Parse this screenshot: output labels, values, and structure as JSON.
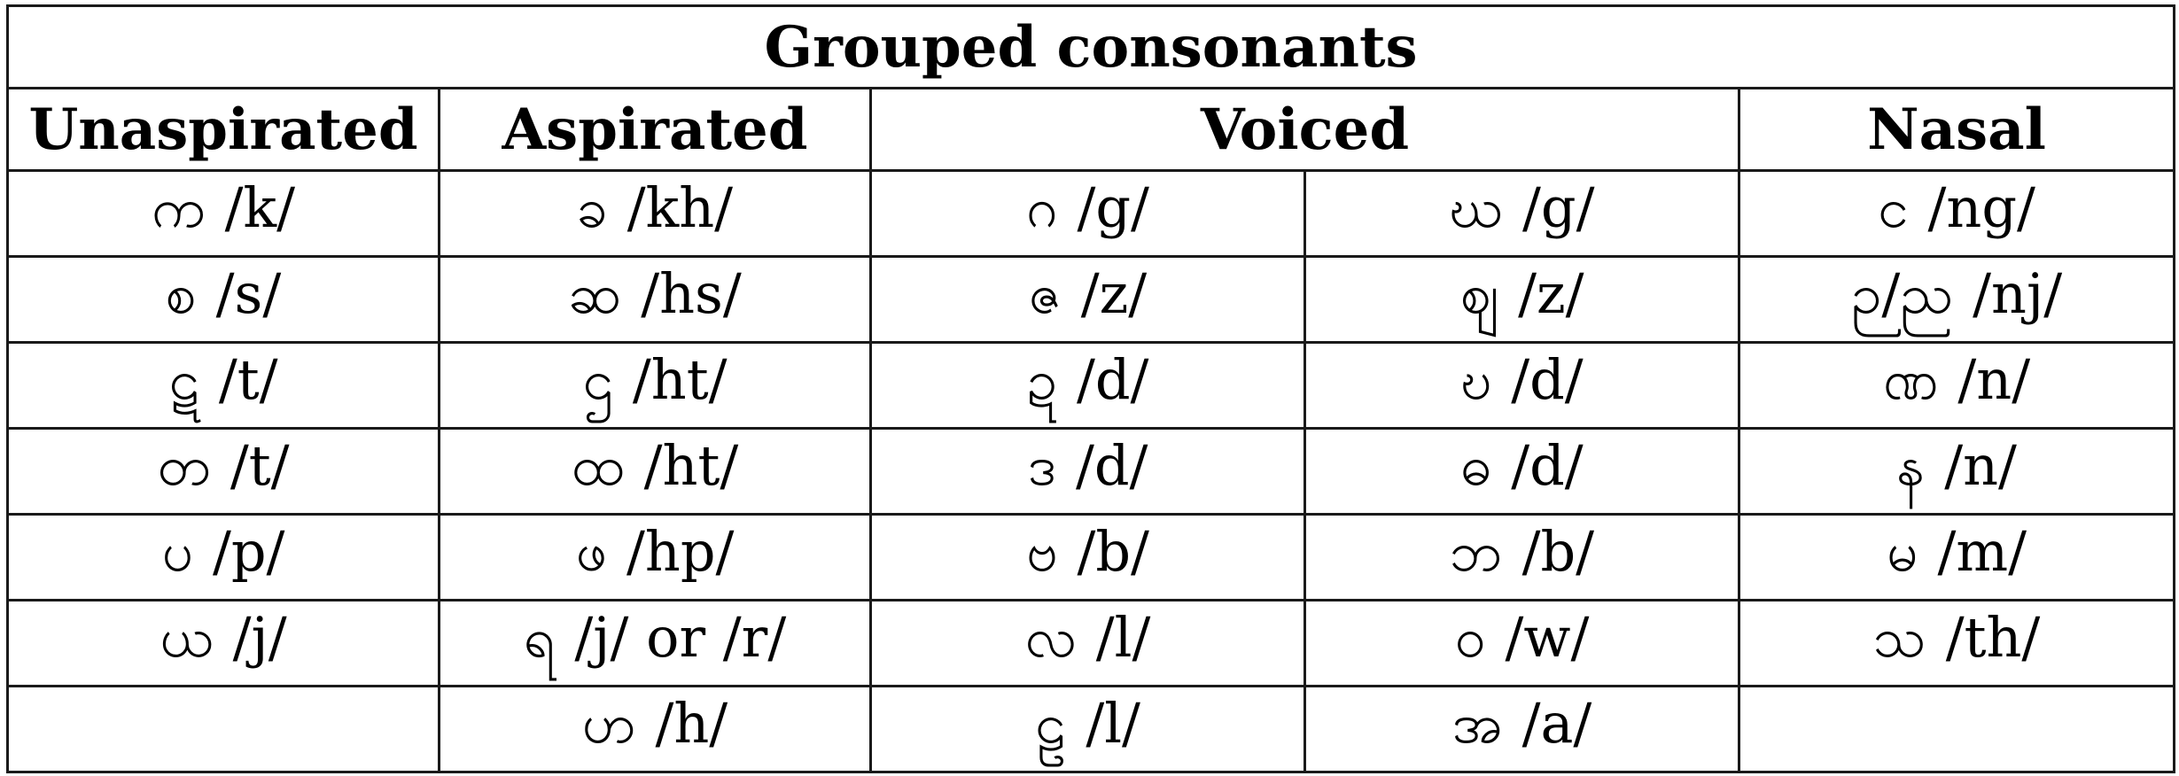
{
  "title": "Grouped consonants",
  "headers": [
    "Unaspirated",
    "Aspirated",
    "Voiced",
    "Nasal"
  ],
  "rows": [
    [
      {
        "g": "က",
        "p": "/k/"
      },
      {
        "g": "ခ",
        "p": "/kh/"
      },
      {
        "g": "ဂ",
        "p": "/g/"
      },
      {
        "g": "ဃ",
        "p": "/g/"
      },
      {
        "g": "င",
        "p": "/ng/"
      }
    ],
    [
      {
        "g": "စ",
        "p": "/s/"
      },
      {
        "g": "ဆ",
        "p": "/hs/"
      },
      {
        "g": "ဇ",
        "p": "/z/"
      },
      {
        "g": "ဈ",
        "p": "/z/"
      },
      {
        "g": "ဉ/ည",
        "p": "/nj/"
      }
    ],
    [
      {
        "g": "ဋ",
        "p": "/t/"
      },
      {
        "g": "ဌ",
        "p": "/ht/"
      },
      {
        "g": "ဍ",
        "p": "/d/"
      },
      {
        "g": "ဎ",
        "p": "/d/"
      },
      {
        "g": "ဏ",
        "p": "/n/"
      }
    ],
    [
      {
        "g": "တ",
        "p": "/t/"
      },
      {
        "g": "ထ",
        "p": "/ht/"
      },
      {
        "g": "ဒ",
        "p": "/d/"
      },
      {
        "g": "ဓ",
        "p": "/d/"
      },
      {
        "g": "န",
        "p": "/n/"
      }
    ],
    [
      {
        "g": "ပ",
        "p": "/p/"
      },
      {
        "g": "ဖ",
        "p": "/hp/"
      },
      {
        "g": "ဗ",
        "p": "/b/"
      },
      {
        "g": "ဘ",
        "p": "/b/"
      },
      {
        "g": "မ",
        "p": "/m/"
      }
    ],
    [
      {
        "g": "ယ",
        "p": "/j/"
      },
      {
        "g": "ရ",
        "p": "/j/ or /r/"
      },
      {
        "g": "လ",
        "p": "/l/"
      },
      {
        "g": "ဝ",
        "p": "/w/"
      },
      {
        "g": "သ",
        "p": "/th/"
      }
    ],
    [
      {
        "g": "",
        "p": ""
      },
      {
        "g": "ဟ",
        "p": "/h/"
      },
      {
        "g": "ဠ",
        "p": "/l/"
      },
      {
        "g": "အ",
        "p": "/a/"
      },
      {
        "g": "",
        "p": ""
      }
    ]
  ]
}
